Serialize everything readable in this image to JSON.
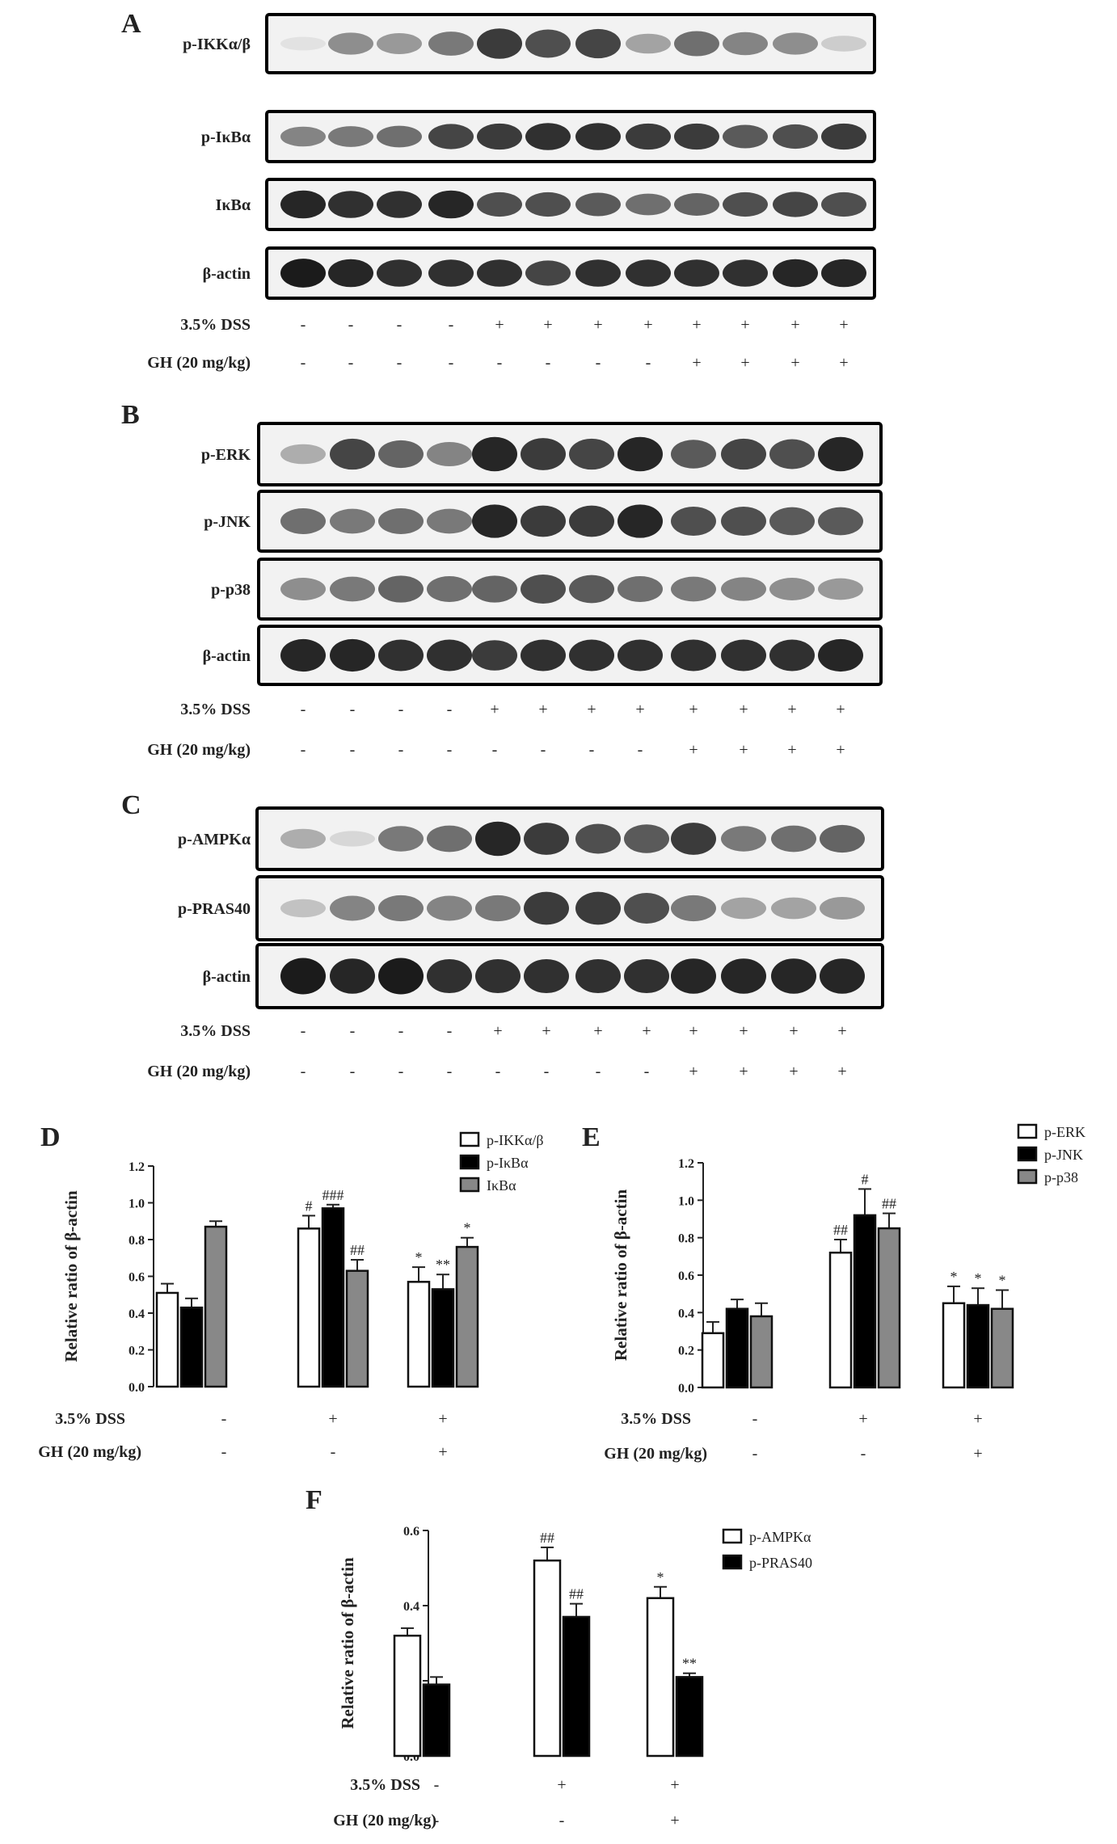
{
  "blots": [
    {
      "letter": "A",
      "rows": [
        {
          "label": "p-IKKα/β",
          "intensity": [
            0.05,
            0.45,
            0.4,
            0.55,
            0.85,
            0.75,
            0.8,
            0.35,
            0.6,
            0.5,
            0.45,
            0.15
          ]
        },
        {
          "label": "p-IκBα",
          "intensity": [
            0.5,
            0.55,
            0.6,
            0.8,
            0.85,
            0.9,
            0.9,
            0.85,
            0.85,
            0.7,
            0.75,
            0.85
          ]
        },
        {
          "label": "IκBα",
          "intensity": [
            0.95,
            0.9,
            0.9,
            0.95,
            0.75,
            0.75,
            0.7,
            0.6,
            0.65,
            0.75,
            0.8,
            0.75
          ]
        },
        {
          "label": "β-actin",
          "intensity": [
            1.0,
            0.95,
            0.9,
            0.9,
            0.9,
            0.8,
            0.9,
            0.9,
            0.9,
            0.9,
            0.95,
            0.95
          ]
        }
      ],
      "dss_label": "3.5% DSS",
      "gh_label": "GH (20 mg/kg)",
      "dss": [
        "-",
        "-",
        "-",
        "-",
        "+",
        "+",
        "+",
        "+",
        "+",
        "+",
        "+",
        "+"
      ],
      "gh": [
        "-",
        "-",
        "-",
        "-",
        "-",
        "-",
        "-",
        "-",
        "+",
        "+",
        "+",
        "+"
      ]
    },
    {
      "letter": "B",
      "rows": [
        {
          "label": "p-ERK",
          "intensity": [
            0.3,
            0.8,
            0.65,
            0.5,
            0.95,
            0.85,
            0.8,
            0.95,
            0.7,
            0.8,
            0.75,
            0.95
          ]
        },
        {
          "label": "p-JNK",
          "intensity": [
            0.6,
            0.55,
            0.6,
            0.55,
            0.95,
            0.85,
            0.85,
            0.95,
            0.75,
            0.75,
            0.7,
            0.7
          ]
        },
        {
          "label": "p-p38",
          "intensity": [
            0.45,
            0.55,
            0.65,
            0.6,
            0.65,
            0.75,
            0.7,
            0.6,
            0.55,
            0.5,
            0.45,
            0.4
          ]
        },
        {
          "label": "β-actin",
          "intensity": [
            0.95,
            0.95,
            0.9,
            0.9,
            0.85,
            0.9,
            0.9,
            0.9,
            0.9,
            0.9,
            0.9,
            0.95
          ]
        }
      ],
      "dss_label": "3.5% DSS",
      "gh_label": "GH (20 mg/kg)",
      "dss": [
        "-",
        "-",
        "-",
        "-",
        "+",
        "+",
        "+",
        "+",
        "+",
        "+",
        "+",
        "+"
      ],
      "gh": [
        "-",
        "-",
        "-",
        "-",
        "-",
        "-",
        "-",
        "-",
        "+",
        "+",
        "+",
        "+"
      ]
    },
    {
      "letter": "C",
      "rows": [
        {
          "label": "p-AMPKα",
          "intensity": [
            0.3,
            0.1,
            0.55,
            0.6,
            0.95,
            0.85,
            0.75,
            0.7,
            0.85,
            0.55,
            0.6,
            0.65
          ]
        },
        {
          "label": "p-PRAS40",
          "intensity": [
            0.2,
            0.5,
            0.55,
            0.5,
            0.55,
            0.85,
            0.85,
            0.75,
            0.55,
            0.35,
            0.35,
            0.4
          ]
        },
        {
          "label": "β-actin",
          "intensity": [
            1.0,
            0.95,
            1.0,
            0.9,
            0.9,
            0.9,
            0.9,
            0.9,
            0.95,
            0.95,
            0.95,
            0.95
          ]
        }
      ],
      "dss_label": "3.5% DSS",
      "gh_label": "GH (20 mg/kg)",
      "dss": [
        "-",
        "-",
        "-",
        "-",
        "+",
        "+",
        "+",
        "+",
        "+",
        "+",
        "+",
        "+"
      ],
      "gh": [
        "-",
        "-",
        "-",
        "-",
        "-",
        "-",
        "-",
        "-",
        "+",
        "+",
        "+",
        "+"
      ]
    }
  ],
  "chart_data": [
    {
      "letter": "D",
      "type": "bar",
      "ylabel": "Relative ratio of  β-actin",
      "ylim": [
        0,
        1.2
      ],
      "yticks": [
        "0.0",
        "0.2",
        "0.4",
        "0.6",
        "0.8",
        "1.0",
        "1.2"
      ],
      "groups": 3,
      "dss_label": "3.5% DSS",
      "gh_label": "GH (20 mg/kg)",
      "dss": [
        "-",
        "+",
        "+"
      ],
      "gh": [
        "-",
        "-",
        "+"
      ],
      "legend_position": "top-right",
      "series": [
        {
          "name": "p-IKKα/β",
          "color": "#ffffff",
          "values": [
            0.51,
            0.86,
            0.57
          ],
          "errors": [
            0.05,
            0.07,
            0.08
          ],
          "annotations": [
            "",
            "#",
            "*"
          ]
        },
        {
          "name": "p-IκBα",
          "color": "#000000",
          "values": [
            0.43,
            0.97,
            0.53
          ],
          "errors": [
            0.05,
            0.02,
            0.08
          ],
          "annotations": [
            "",
            "###",
            "**"
          ]
        },
        {
          "name": "IκBα",
          "color": "#888888",
          "values": [
            0.87,
            0.63,
            0.76
          ],
          "errors": [
            0.03,
            0.06,
            0.05
          ],
          "annotations": [
            "",
            "##",
            "*"
          ]
        }
      ]
    },
    {
      "letter": "E",
      "type": "bar",
      "ylabel": "Relative ratio of  β-actin",
      "ylim": [
        0,
        1.2
      ],
      "yticks": [
        "0.0",
        "0.2",
        "0.4",
        "0.6",
        "0.8",
        "1.0",
        "1.2"
      ],
      "groups": 3,
      "dss_label": "3.5% DSS",
      "gh_label": "GH (20 mg/kg)",
      "dss": [
        "-",
        "+",
        "+"
      ],
      "gh": [
        "-",
        "-",
        "+"
      ],
      "legend_position": "top-right",
      "series": [
        {
          "name": "p-ERK",
          "color": "#ffffff",
          "values": [
            0.29,
            0.72,
            0.45
          ],
          "errors": [
            0.06,
            0.07,
            0.09
          ],
          "annotations": [
            "",
            "##",
            "*"
          ]
        },
        {
          "name": "p-JNK",
          "color": "#000000",
          "values": [
            0.42,
            0.92,
            0.44
          ],
          "errors": [
            0.05,
            0.14,
            0.09
          ],
          "annotations": [
            "",
            "#",
            "*"
          ]
        },
        {
          "name": "p-p38",
          "color": "#888888",
          "values": [
            0.38,
            0.85,
            0.42
          ],
          "errors": [
            0.07,
            0.08,
            0.1
          ],
          "annotations": [
            "",
            "##",
            "*"
          ]
        }
      ]
    },
    {
      "letter": "F",
      "type": "bar",
      "ylabel": "Relative ratio of  β-actin",
      "ylim": [
        0,
        0.6
      ],
      "yticks": [
        "0.0",
        "0.2",
        "0.4",
        "0.6"
      ],
      "groups": 3,
      "dss_label": "3.5% DSS",
      "gh_label": "GH (20 mg/kg)",
      "dss": [
        "-",
        "+",
        "+"
      ],
      "gh": [
        "-",
        "-",
        "+"
      ],
      "legend_position": "top-right",
      "series": [
        {
          "name": "p-AMPKα",
          "color": "#ffffff",
          "values": [
            0.32,
            0.52,
            0.42
          ],
          "errors": [
            0.02,
            0.035,
            0.03
          ],
          "annotations": [
            "",
            "##",
            "*"
          ]
        },
        {
          "name": "p-PRAS40",
          "color": "#000000",
          "values": [
            0.19,
            0.37,
            0.21
          ],
          "errors": [
            0.02,
            0.035,
            0.01
          ],
          "annotations": [
            "",
            "##",
            "**"
          ]
        }
      ]
    }
  ]
}
